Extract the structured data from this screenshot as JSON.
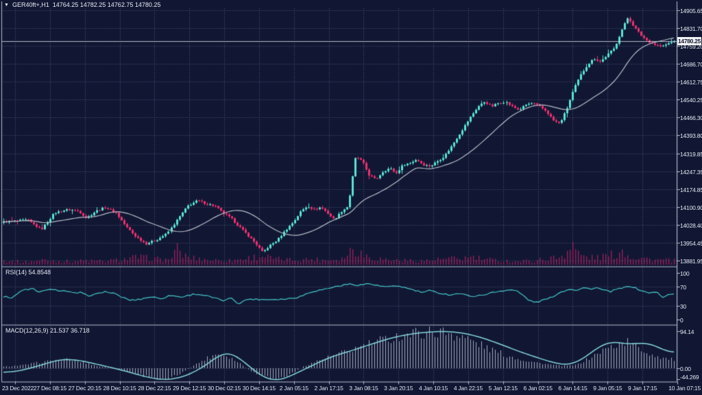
{
  "window": {
    "symbol_period": "GER40ft+,H1",
    "ohlc_display": "14764.25 14782.25 14762.75 14780.25",
    "dropdown_icon": "▼"
  },
  "colors": {
    "background": "#111733",
    "grid": "#4f577a",
    "frame": "#b7bfcf",
    "bull": "#58e5d3",
    "bear": "#f02f70",
    "volume": "#97205a",
    "ma_line": "#b9bec9",
    "rsi_line": "#46c8ca",
    "macd_line": "#86d7dd",
    "macd_hist": "#a7aec0",
    "price_line": "#d6dae2",
    "badge_bg": "#f2f3f5",
    "text": "#e8ebf4"
  },
  "chart_data": [
    {
      "type": "candlestick",
      "title": "GER40ft+,H1",
      "current_bar": {
        "open": "14764.25",
        "high": "14782.25",
        "low": "14762.75",
        "close": "14780.25"
      },
      "current_price": 14780.25,
      "current_price_label": "14780.25",
      "ylim": [
        13861,
        14914
      ],
      "y_ticks": [
        14905.65,
        14831.7,
        14759.2,
        14686.7,
        14612.75,
        14540.25,
        14466.3,
        14393.8,
        14319.85,
        14247.35,
        14174.85,
        14100.9,
        14028.4,
        13954.45,
        13881.95
      ],
      "y_tick_labels": [
        "14905.65",
        "14831.70",
        "14759.20",
        "14686.70",
        "14612.75",
        "14540.25",
        "14466.30",
        "14393.80",
        "14319.85",
        "14247.35",
        "14174.85",
        "14100.90",
        "14028.40",
        "13954.45",
        "13881.95"
      ],
      "x_tick_labels": [
        "23 Dec 2022",
        "27 Dec 08:15",
        "27 Dec 20:15",
        "28 Dec 10:15",
        "28 Dec 22:15",
        "29 Dec 12:15",
        "30 Dec 02:15",
        "30 Dec 14:15",
        "2 Jan 05:15",
        "2 Jan 17:15",
        "3 Jan 08:15",
        "3 Jan 20:15",
        "4 Jan 10:15",
        "4 Jan 22:15",
        "5 Jan 12:15",
        "6 Jan 02:15",
        "6 Jan 14:15",
        "9 Jan 05:15",
        "9 Jan 17:15",
        "10 Jan 07:15"
      ],
      "candle_count": 245,
      "ma_period": 24,
      "price_path": [
        [
          0,
          14040
        ],
        [
          0.036,
          14048
        ],
        [
          0.056,
          14008
        ],
        [
          0.076,
          14077
        ],
        [
          0.096,
          14091
        ],
        [
          0.112,
          14085
        ],
        [
          0.124,
          14056
        ],
        [
          0.137,
          14083
        ],
        [
          0.152,
          14100
        ],
        [
          0.168,
          14077
        ],
        [
          0.183,
          14021
        ],
        [
          0.198,
          13979
        ],
        [
          0.213,
          13951
        ],
        [
          0.228,
          13966
        ],
        [
          0.244,
          13993
        ],
        [
          0.259,
          14050
        ],
        [
          0.274,
          14105
        ],
        [
          0.289,
          14128
        ],
        [
          0.301,
          14115
        ],
        [
          0.315,
          14105
        ],
        [
          0.327,
          14077
        ],
        [
          0.339,
          14055
        ],
        [
          0.351,
          14021
        ],
        [
          0.363,
          13988
        ],
        [
          0.376,
          13951
        ],
        [
          0.386,
          13915
        ],
        [
          0.396,
          13942
        ],
        [
          0.408,
          13966
        ],
        [
          0.421,
          14008
        ],
        [
          0.433,
          14043
        ],
        [
          0.443,
          14083
        ],
        [
          0.453,
          14105
        ],
        [
          0.463,
          14091
        ],
        [
          0.473,
          14100
        ],
        [
          0.483,
          14077
        ],
        [
          0.493,
          14049
        ],
        [
          0.504,
          14083
        ],
        [
          0.514,
          14105
        ],
        [
          0.525,
          14307
        ],
        [
          0.535,
          14288
        ],
        [
          0.545,
          14232
        ],
        [
          0.555,
          14213
        ],
        [
          0.566,
          14246
        ],
        [
          0.576,
          14260
        ],
        [
          0.586,
          14240
        ],
        [
          0.596,
          14274
        ],
        [
          0.606,
          14280
        ],
        [
          0.616,
          14296
        ],
        [
          0.626,
          14274
        ],
        [
          0.637,
          14268
        ],
        [
          0.647,
          14288
        ],
        [
          0.657,
          14307
        ],
        [
          0.667,
          14344
        ],
        [
          0.677,
          14386
        ],
        [
          0.687,
          14428
        ],
        [
          0.697,
          14470
        ],
        [
          0.708,
          14512
        ],
        [
          0.718,
          14532
        ],
        [
          0.728,
          14512
        ],
        [
          0.738,
          14526
        ],
        [
          0.748,
          14532
        ],
        [
          0.758,
          14512
        ],
        [
          0.768,
          14498
        ],
        [
          0.779,
          14520
        ],
        [
          0.789,
          14526
        ],
        [
          0.799,
          14512
        ],
        [
          0.809,
          14493
        ],
        [
          0.819,
          14456
        ],
        [
          0.829,
          14442
        ],
        [
          0.839,
          14498
        ],
        [
          0.85,
          14583
        ],
        [
          0.86,
          14639
        ],
        [
          0.87,
          14681
        ],
        [
          0.88,
          14709
        ],
        [
          0.89,
          14695
        ],
        [
          0.9,
          14723
        ],
        [
          0.911,
          14751
        ],
        [
          0.921,
          14821
        ],
        [
          0.931,
          14877
        ],
        [
          0.941,
          14835
        ],
        [
          0.951,
          14802
        ],
        [
          0.961,
          14779
        ],
        [
          0.971,
          14765
        ],
        [
          0.982,
          14757
        ],
        [
          0.992,
          14771
        ],
        [
          1,
          14780
        ]
      ],
      "volume_profile": [
        [
          0,
          6
        ],
        [
          0.03,
          4
        ],
        [
          0.06,
          7
        ],
        [
          0.09,
          5
        ],
        [
          0.12,
          6
        ],
        [
          0.15,
          5
        ],
        [
          0.18,
          8
        ],
        [
          0.2,
          11
        ],
        [
          0.22,
          9
        ],
        [
          0.245,
          7
        ],
        [
          0.258,
          22
        ],
        [
          0.268,
          13
        ],
        [
          0.285,
          9
        ],
        [
          0.31,
          7
        ],
        [
          0.335,
          6
        ],
        [
          0.36,
          9
        ],
        [
          0.385,
          13
        ],
        [
          0.405,
          8
        ],
        [
          0.43,
          7
        ],
        [
          0.455,
          8
        ],
        [
          0.48,
          7
        ],
        [
          0.505,
          9
        ],
        [
          0.522,
          26
        ],
        [
          0.535,
          15
        ],
        [
          0.555,
          9
        ],
        [
          0.58,
          7
        ],
        [
          0.605,
          6
        ],
        [
          0.63,
          6
        ],
        [
          0.655,
          8
        ],
        [
          0.68,
          9
        ],
        [
          0.7,
          11
        ],
        [
          0.715,
          8
        ],
        [
          0.74,
          6
        ],
        [
          0.765,
          5
        ],
        [
          0.79,
          6
        ],
        [
          0.81,
          9
        ],
        [
          0.83,
          11
        ],
        [
          0.848,
          30
        ],
        [
          0.858,
          14
        ],
        [
          0.875,
          10
        ],
        [
          0.895,
          12
        ],
        [
          0.91,
          15
        ],
        [
          0.922,
          21
        ],
        [
          0.935,
          12
        ],
        [
          0.95,
          10
        ],
        [
          0.965,
          8
        ],
        [
          0.98,
          7
        ],
        [
          1,
          6
        ]
      ]
    },
    {
      "type": "line",
      "name": "RSI(14)",
      "value": "54.8548",
      "label_display": "RSI(14) 54.8548",
      "ylim": [
        0,
        100
      ],
      "levels": [
        100,
        70,
        30,
        0
      ],
      "level_labels": [
        "100",
        "70",
        "30",
        "0"
      ],
      "dotted_levels": [
        70,
        30
      ],
      "points": [
        [
          0,
          49
        ],
        [
          0.012,
          47
        ],
        [
          0.03,
          64
        ],
        [
          0.045,
          66
        ],
        [
          0.052,
          57
        ],
        [
          0.062,
          64
        ],
        [
          0.08,
          63
        ],
        [
          0.095,
          61
        ],
        [
          0.105,
          56
        ],
        [
          0.115,
          58
        ],
        [
          0.125,
          51
        ],
        [
          0.14,
          55
        ],
        [
          0.15,
          60
        ],
        [
          0.165,
          56
        ],
        [
          0.175,
          49
        ],
        [
          0.19,
          41
        ],
        [
          0.205,
          44
        ],
        [
          0.22,
          49
        ],
        [
          0.235,
          45
        ],
        [
          0.25,
          52
        ],
        [
          0.265,
          48
        ],
        [
          0.285,
          55
        ],
        [
          0.3,
          52
        ],
        [
          0.315,
          46
        ],
        [
          0.33,
          40
        ],
        [
          0.34,
          47
        ],
        [
          0.35,
          34
        ],
        [
          0.365,
          44
        ],
        [
          0.39,
          43
        ],
        [
          0.42,
          44
        ],
        [
          0.44,
          48
        ],
        [
          0.46,
          60
        ],
        [
          0.475,
          64
        ],
        [
          0.5,
          72
        ],
        [
          0.515,
          76
        ],
        [
          0.53,
          74
        ],
        [
          0.545,
          77
        ],
        [
          0.56,
          72
        ],
        [
          0.575,
          70
        ],
        [
          0.59,
          72
        ],
        [
          0.61,
          64
        ],
        [
          0.625,
          58
        ],
        [
          0.635,
          62
        ],
        [
          0.65,
          57
        ],
        [
          0.665,
          53
        ],
        [
          0.68,
          56
        ],
        [
          0.69,
          52
        ],
        [
          0.705,
          50
        ],
        [
          0.715,
          53
        ],
        [
          0.73,
          58
        ],
        [
          0.745,
          62
        ],
        [
          0.755,
          64
        ],
        [
          0.765,
          62
        ],
        [
          0.775,
          52
        ],
        [
          0.785,
          40
        ],
        [
          0.795,
          37
        ],
        [
          0.805,
          42
        ],
        [
          0.815,
          46
        ],
        [
          0.83,
          58
        ],
        [
          0.845,
          66
        ],
        [
          0.855,
          63
        ],
        [
          0.865,
          68
        ],
        [
          0.875,
          66
        ],
        [
          0.885,
          68
        ],
        [
          0.895,
          63
        ],
        [
          0.905,
          60
        ],
        [
          0.915,
          65
        ],
        [
          0.925,
          68
        ],
        [
          0.935,
          72
        ],
        [
          0.945,
          66
        ],
        [
          0.955,
          60
        ],
        [
          0.965,
          57
        ],
        [
          0.975,
          59
        ],
        [
          0.982,
          47
        ],
        [
          0.99,
          53
        ],
        [
          1,
          55
        ]
      ]
    },
    {
      "type": "macd",
      "name": "MACD(12,26,9)",
      "values": "21.537 36.718",
      "label_display": "MACD(12,26,9) 21.537 36.718",
      "y_ticks": [
        94.14,
        0.0,
        -44.269
      ],
      "y_tick_labels": [
        "94.14",
        "0.00",
        "-44.269"
      ],
      "signal_points": [
        [
          0,
          -11
        ],
        [
          0.02,
          -8
        ],
        [
          0.04,
          0
        ],
        [
          0.06,
          10
        ],
        [
          0.085,
          23
        ],
        [
          0.1,
          23
        ],
        [
          0.12,
          18
        ],
        [
          0.14,
          10
        ],
        [
          0.16,
          2
        ],
        [
          0.18,
          -6
        ],
        [
          0.2,
          -16
        ],
        [
          0.22,
          -25
        ],
        [
          0.24,
          -30
        ],
        [
          0.26,
          -26
        ],
        [
          0.28,
          -14
        ],
        [
          0.3,
          5
        ],
        [
          0.315,
          25
        ],
        [
          0.325,
          38
        ],
        [
          0.335,
          42
        ],
        [
          0.345,
          35
        ],
        [
          0.36,
          15
        ],
        [
          0.375,
          -8
        ],
        [
          0.39,
          -25
        ],
        [
          0.4,
          -32
        ],
        [
          0.415,
          -30
        ],
        [
          0.43,
          -18
        ],
        [
          0.45,
          -2
        ],
        [
          0.47,
          15
        ],
        [
          0.49,
          30
        ],
        [
          0.52,
          45
        ],
        [
          0.55,
          62
        ],
        [
          0.58,
          78
        ],
        [
          0.61,
          88
        ],
        [
          0.64,
          93
        ],
        [
          0.66,
          94
        ],
        [
          0.685,
          90
        ],
        [
          0.71,
          80
        ],
        [
          0.74,
          62
        ],
        [
          0.77,
          42
        ],
        [
          0.8,
          25
        ],
        [
          0.82,
          14
        ],
        [
          0.838,
          8
        ],
        [
          0.85,
          10
        ],
        [
          0.87,
          30
        ],
        [
          0.885,
          52
        ],
        [
          0.9,
          66
        ],
        [
          0.915,
          68
        ],
        [
          0.93,
          60
        ],
        [
          0.945,
          63
        ],
        [
          0.96,
          66
        ],
        [
          0.975,
          55
        ],
        [
          0.99,
          42
        ],
        [
          1,
          37
        ]
      ],
      "hist_points": [
        [
          0,
          4
        ],
        [
          0.03,
          8
        ],
        [
          0.05,
          14
        ],
        [
          0.08,
          20
        ],
        [
          0.1,
          22
        ],
        [
          0.127,
          12
        ],
        [
          0.142,
          5
        ],
        [
          0.162,
          0
        ],
        [
          0.178,
          -4
        ],
        [
          0.198,
          -14
        ],
        [
          0.218,
          -24
        ],
        [
          0.239,
          -27
        ],
        [
          0.254,
          -20
        ],
        [
          0.269,
          -8
        ],
        [
          0.284,
          8
        ],
        [
          0.305,
          28
        ],
        [
          0.32,
          38
        ],
        [
          0.335,
          30
        ],
        [
          0.35,
          15
        ],
        [
          0.366,
          -5
        ],
        [
          0.381,
          -18
        ],
        [
          0.401,
          -28
        ],
        [
          0.416,
          -24
        ],
        [
          0.431,
          -12
        ],
        [
          0.447,
          5
        ],
        [
          0.467,
          18
        ],
        [
          0.487,
          30
        ],
        [
          0.508,
          40
        ],
        [
          0.528,
          52
        ],
        [
          0.553,
          65
        ],
        [
          0.579,
          78
        ],
        [
          0.609,
          88
        ],
        [
          0.64,
          93
        ],
        [
          0.665,
          90
        ],
        [
          0.685,
          80
        ],
        [
          0.711,
          60
        ],
        [
          0.731,
          45
        ],
        [
          0.751,
          32
        ],
        [
          0.772,
          22
        ],
        [
          0.792,
          15
        ],
        [
          0.812,
          10
        ],
        [
          0.832,
          6
        ],
        [
          0.853,
          8
        ],
        [
          0.873,
          25
        ],
        [
          0.893,
          45
        ],
        [
          0.914,
          60
        ],
        [
          0.929,
          68
        ],
        [
          0.944,
          55
        ],
        [
          0.959,
          40
        ],
        [
          0.975,
          30
        ],
        [
          0.99,
          24
        ],
        [
          1,
          21.5
        ]
      ]
    }
  ]
}
